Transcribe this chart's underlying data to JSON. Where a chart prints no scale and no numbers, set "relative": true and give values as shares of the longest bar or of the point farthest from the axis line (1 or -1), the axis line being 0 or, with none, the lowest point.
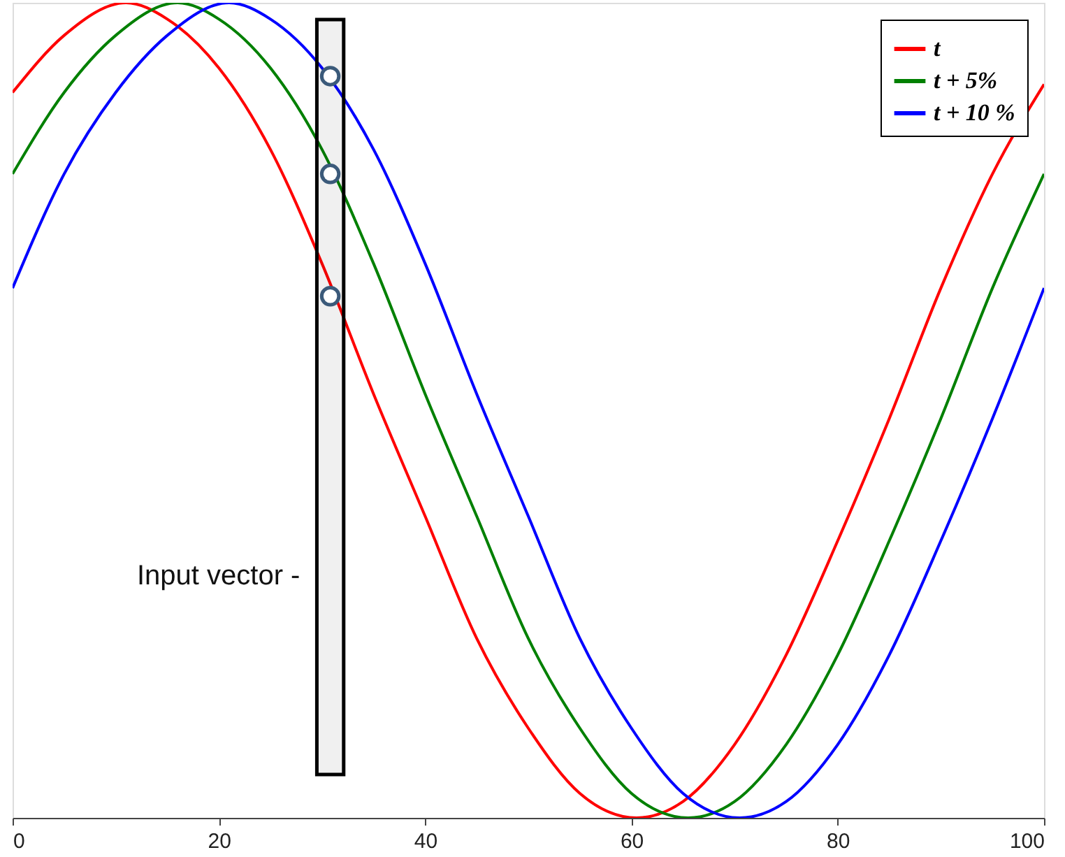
{
  "chart_data": {
    "type": "line",
    "relative": true,
    "xlim": [
      0,
      100
    ],
    "xticks": [
      0,
      20,
      40,
      60,
      80,
      100
    ],
    "tick_labels": "x",
    "grid": false,
    "legend": "top right",
    "marker": "none",
    "line_style": "solid",
    "series": [
      {
        "name": "t",
        "color": "#ff0000",
        "x": [
          0,
          5,
          11,
          15,
          20,
          25,
          30,
          35,
          40,
          45,
          50,
          55,
          60.5,
          65,
          70,
          75,
          80,
          85,
          90,
          95,
          100
        ],
        "values": [
          0.89,
          0.96,
          1,
          0.98,
          0.92,
          0.82,
          0.68,
          0.52,
          0.37,
          0.22,
          0.11,
          0.03,
          0,
          0.02,
          0.09,
          0.2,
          0.34,
          0.49,
          0.65,
          0.79,
          0.9
        ]
      },
      {
        "name": "t + 5%",
        "color": "#008000",
        "x": [
          0,
          5,
          10,
          16,
          20,
          25,
          30,
          35,
          40,
          45,
          50,
          55,
          60,
          65.5,
          70,
          75,
          80,
          85,
          90,
          95,
          100
        ],
        "values": [
          0.79,
          0.89,
          0.96,
          1,
          0.98,
          0.92,
          0.82,
          0.68,
          0.52,
          0.37,
          0.22,
          0.11,
          0.03,
          0,
          0.02,
          0.09,
          0.2,
          0.34,
          0.49,
          0.65,
          0.79
        ]
      },
      {
        "name": "t + 10 %",
        "color": "#0000ff",
        "x": [
          0,
          5,
          10,
          15,
          21,
          25,
          30,
          35,
          40,
          45,
          50,
          55,
          60,
          65,
          70.5,
          75,
          80,
          85,
          90,
          95,
          100
        ],
        "values": [
          0.65,
          0.79,
          0.89,
          0.96,
          1,
          0.98,
          0.92,
          0.82,
          0.68,
          0.52,
          0.37,
          0.22,
          0.11,
          0.03,
          0,
          0.02,
          0.09,
          0.2,
          0.34,
          0.49,
          0.65
        ]
      },
      {
        "type": "scatter",
        "marker": "circle",
        "color": "#3b5a7a",
        "x": [
          30.8,
          30.8,
          30.8
        ],
        "values": [
          0.64,
          0.79,
          0.91
        ]
      }
    ],
    "bands": [
      {
        "axis": "x",
        "from": 29.5,
        "to": 32.1,
        "label": "Input vector -",
        "color": "#000000"
      }
    ]
  }
}
